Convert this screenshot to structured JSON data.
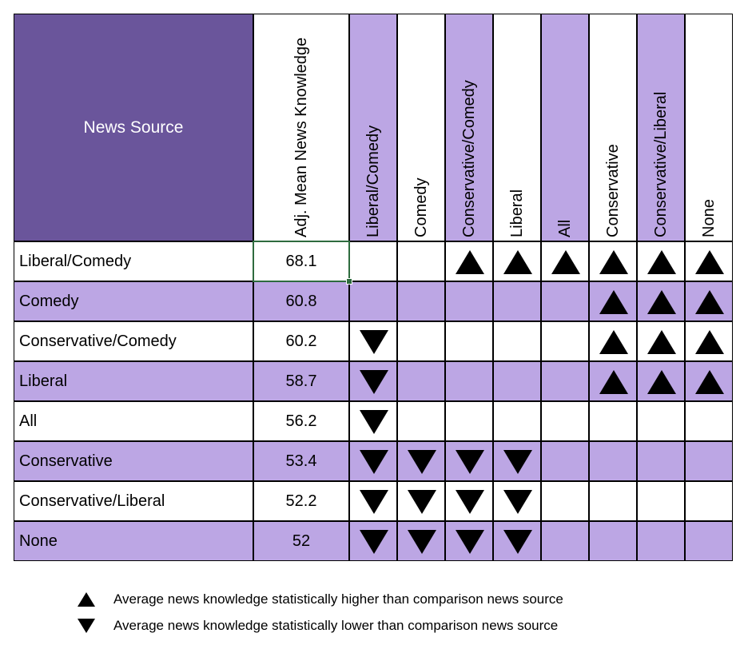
{
  "chart_data": {
    "type": "table",
    "corner_header": "News Source",
    "value_header": "Adj. Mean News Knowledge",
    "columns": [
      "Liberal/Comedy",
      "Comedy",
      "Conservative/Comedy",
      "Liberal",
      "All",
      "Conservative",
      "Conservative/Liberal",
      "None"
    ],
    "rows": [
      {
        "label": "Liberal/Comedy",
        "value": "68.1",
        "marks": [
          "",
          "",
          "up",
          "up",
          "up",
          "up",
          "up",
          "up"
        ]
      },
      {
        "label": "Comedy",
        "value": "60.8",
        "marks": [
          "",
          "",
          "",
          "",
          "",
          "up",
          "up",
          "up"
        ]
      },
      {
        "label": "Conservative/Comedy",
        "value": "60.2",
        "marks": [
          "down",
          "",
          "",
          "",
          "",
          "up",
          "up",
          "up"
        ]
      },
      {
        "label": "Liberal",
        "value": "58.7",
        "marks": [
          "down",
          "",
          "",
          "",
          "",
          "up",
          "up",
          "up"
        ]
      },
      {
        "label": "All",
        "value": "56.2",
        "marks": [
          "down",
          "",
          "",
          "",
          "",
          "",
          "",
          ""
        ]
      },
      {
        "label": "Conservative",
        "value": "53.4",
        "marks": [
          "down",
          "down",
          "down",
          "down",
          "",
          "",
          "",
          ""
        ]
      },
      {
        "label": "Conservative/Liberal",
        "value": "52.2",
        "marks": [
          "down",
          "down",
          "down",
          "down",
          "",
          "",
          "",
          ""
        ]
      },
      {
        "label": "None",
        "value": "52",
        "marks": [
          "down",
          "down",
          "down",
          "down",
          "",
          "",
          "",
          ""
        ]
      }
    ],
    "legend": {
      "up": "Average news knowledge statistically higher than comparison news source",
      "down": "Average news knowledge statistically lower than comparison news source"
    },
    "colors": {
      "corner": "#6a559b",
      "shade": "#bca6e4",
      "white": "#ffffff",
      "border": "#000000",
      "selected": "#2e6b3e"
    }
  }
}
